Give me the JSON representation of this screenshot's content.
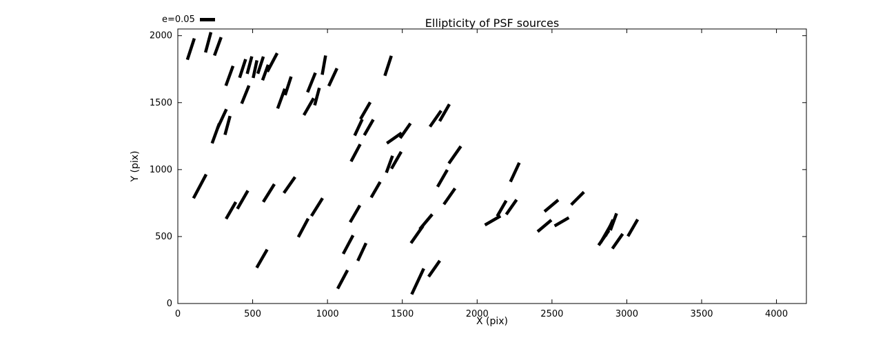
{
  "title": "Ellipticity of PSF sources",
  "xlabel": "X (pix)",
  "ylabel": "Y (pix)",
  "legend": {
    "label": "e=0.05",
    "e": 0.05,
    "position": "top-left-above-axes"
  },
  "colors": {
    "stick": "#000000",
    "frame": "#000000",
    "background": "#ffffff",
    "text": "#000000"
  },
  "chart_data": {
    "type": "scatter",
    "subtype": "ellipticity-stick-plot",
    "title": "Ellipticity of PSF sources",
    "xlabel": "X (pix)",
    "ylabel": "Y (pix)",
    "xlim": [
      0,
      4200
    ],
    "ylim": [
      0,
      2050
    ],
    "xticks": [
      0,
      500,
      1000,
      1500,
      2000,
      2500,
      3000,
      3500,
      4000
    ],
    "yticks": [
      0,
      500,
      1000,
      1500,
      2000
    ],
    "grid": false,
    "legend": {
      "label": "e=0.05",
      "e": 0.05
    },
    "scale_data_units_per_e": 2000,
    "stick_stroke_px": 4.5,
    "sticks": [
      {
        "x": 87,
        "y": 1900,
        "angle": 72,
        "e": 0.075
      },
      {
        "x": 203,
        "y": 1950,
        "angle": 75,
        "e": 0.07
      },
      {
        "x": 267,
        "y": 1920,
        "angle": 70,
        "e": 0.065
      },
      {
        "x": 345,
        "y": 1700,
        "angle": 70,
        "e": 0.07
      },
      {
        "x": 433,
        "y": 1755,
        "angle": 72,
        "e": 0.065
      },
      {
        "x": 479,
        "y": 1780,
        "angle": 75,
        "e": 0.06
      },
      {
        "x": 516,
        "y": 1750,
        "angle": 78,
        "e": 0.06
      },
      {
        "x": 553,
        "y": 1780,
        "angle": 72,
        "e": 0.06
      },
      {
        "x": 585,
        "y": 1725,
        "angle": 70,
        "e": 0.055
      },
      {
        "x": 631,
        "y": 1800,
        "angle": 62,
        "e": 0.07
      },
      {
        "x": 295,
        "y": 1380,
        "angle": 65,
        "e": 0.07
      },
      {
        "x": 332,
        "y": 1330,
        "angle": 75,
        "e": 0.065
      },
      {
        "x": 253,
        "y": 1270,
        "angle": 70,
        "e": 0.07
      },
      {
        "x": 451,
        "y": 1560,
        "angle": 68,
        "e": 0.065
      },
      {
        "x": 691,
        "y": 1530,
        "angle": 70,
        "e": 0.07
      },
      {
        "x": 737,
        "y": 1625,
        "angle": 72,
        "e": 0.065
      },
      {
        "x": 893,
        "y": 1650,
        "angle": 68,
        "e": 0.07
      },
      {
        "x": 875,
        "y": 1470,
        "angle": 60,
        "e": 0.065
      },
      {
        "x": 930,
        "y": 1545,
        "angle": 75,
        "e": 0.06
      },
      {
        "x": 976,
        "y": 1780,
        "angle": 80,
        "e": 0.065
      },
      {
        "x": 1036,
        "y": 1690,
        "angle": 65,
        "e": 0.065
      },
      {
        "x": 1405,
        "y": 1775,
        "angle": 72,
        "e": 0.07
      },
      {
        "x": 1253,
        "y": 1440,
        "angle": 60,
        "e": 0.065
      },
      {
        "x": 1207,
        "y": 1315,
        "angle": 65,
        "e": 0.06
      },
      {
        "x": 1276,
        "y": 1315,
        "angle": 60,
        "e": 0.06
      },
      {
        "x": 1188,
        "y": 1125,
        "angle": 62,
        "e": 0.065
      },
      {
        "x": 1446,
        "y": 1235,
        "angle": 35,
        "e": 0.06
      },
      {
        "x": 1520,
        "y": 1290,
        "angle": 55,
        "e": 0.06
      },
      {
        "x": 1722,
        "y": 1380,
        "angle": 55,
        "e": 0.065
      },
      {
        "x": 1782,
        "y": 1425,
        "angle": 60,
        "e": 0.065
      },
      {
        "x": 1460,
        "y": 1070,
        "angle": 60,
        "e": 0.065
      },
      {
        "x": 1414,
        "y": 1040,
        "angle": 70,
        "e": 0.06
      },
      {
        "x": 1851,
        "y": 1110,
        "angle": 55,
        "e": 0.07
      },
      {
        "x": 1768,
        "y": 935,
        "angle": 60,
        "e": 0.065
      },
      {
        "x": 2252,
        "y": 980,
        "angle": 65,
        "e": 0.07
      },
      {
        "x": 147,
        "y": 875,
        "angle": 62,
        "e": 0.09
      },
      {
        "x": 433,
        "y": 775,
        "angle": 60,
        "e": 0.07
      },
      {
        "x": 355,
        "y": 695,
        "angle": 60,
        "e": 0.065
      },
      {
        "x": 608,
        "y": 825,
        "angle": 58,
        "e": 0.07
      },
      {
        "x": 746,
        "y": 885,
        "angle": 55,
        "e": 0.065
      },
      {
        "x": 838,
        "y": 565,
        "angle": 62,
        "e": 0.07
      },
      {
        "x": 930,
        "y": 720,
        "angle": 58,
        "e": 0.07
      },
      {
        "x": 562,
        "y": 335,
        "angle": 60,
        "e": 0.07
      },
      {
        "x": 1138,
        "y": 440,
        "angle": 62,
        "e": 0.07
      },
      {
        "x": 1230,
        "y": 385,
        "angle": 65,
        "e": 0.065
      },
      {
        "x": 1184,
        "y": 670,
        "angle": 60,
        "e": 0.065
      },
      {
        "x": 1322,
        "y": 850,
        "angle": 60,
        "e": 0.06
      },
      {
        "x": 1598,
        "y": 515,
        "angle": 55,
        "e": 0.07
      },
      {
        "x": 1658,
        "y": 610,
        "angle": 50,
        "e": 0.065
      },
      {
        "x": 1815,
        "y": 800,
        "angle": 55,
        "e": 0.065
      },
      {
        "x": 1603,
        "y": 165,
        "angle": 65,
        "e": 0.095
      },
      {
        "x": 1713,
        "y": 260,
        "angle": 55,
        "e": 0.065
      },
      {
        "x": 1101,
        "y": 180,
        "angle": 62,
        "e": 0.07
      },
      {
        "x": 2104,
        "y": 620,
        "angle": 30,
        "e": 0.06
      },
      {
        "x": 2164,
        "y": 710,
        "angle": 60,
        "e": 0.06
      },
      {
        "x": 2229,
        "y": 720,
        "angle": 55,
        "e": 0.06
      },
      {
        "x": 2496,
        "y": 730,
        "angle": 40,
        "e": 0.06
      },
      {
        "x": 2565,
        "y": 610,
        "angle": 30,
        "e": 0.055
      },
      {
        "x": 2671,
        "y": 785,
        "angle": 45,
        "e": 0.06
      },
      {
        "x": 2450,
        "y": 580,
        "angle": 40,
        "e": 0.06
      },
      {
        "x": 2856,
        "y": 515,
        "angle": 60,
        "e": 0.065
      },
      {
        "x": 2883,
        "y": 565,
        "angle": 65,
        "e": 0.06
      },
      {
        "x": 2911,
        "y": 610,
        "angle": 70,
        "e": 0.06
      },
      {
        "x": 2846,
        "y": 490,
        "angle": 55,
        "e": 0.06
      },
      {
        "x": 2938,
        "y": 465,
        "angle": 55,
        "e": 0.06
      },
      {
        "x": 3040,
        "y": 565,
        "angle": 60,
        "e": 0.065
      }
    ]
  }
}
